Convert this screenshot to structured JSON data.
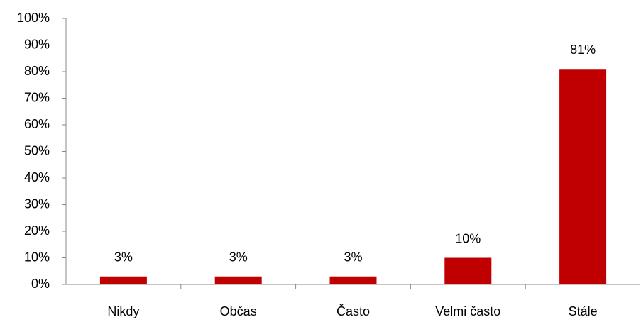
{
  "chart_data": {
    "type": "bar",
    "categories": [
      "Nikdy",
      "Občas",
      "Často",
      "Velmi často",
      "Stále"
    ],
    "values": [
      3,
      3,
      3,
      10,
      81
    ],
    "value_labels": [
      "3%",
      "3%",
      "3%",
      "10%",
      "81%"
    ],
    "color": "#c00000",
    "ylim": [
      0,
      100
    ],
    "yticks": [
      {
        "value": 0,
        "label": "0%"
      },
      {
        "value": 10,
        "label": "10%"
      },
      {
        "value": 20,
        "label": "20%"
      },
      {
        "value": 30,
        "label": "30%"
      },
      {
        "value": 40,
        "label": "40%"
      },
      {
        "value": 50,
        "label": "50%"
      },
      {
        "value": 60,
        "label": "60%"
      },
      {
        "value": 70,
        "label": "70%"
      },
      {
        "value": 80,
        "label": "80%"
      },
      {
        "value": 90,
        "label": "90%"
      },
      {
        "value": 100,
        "label": "100%"
      }
    ],
    "grid": false
  }
}
